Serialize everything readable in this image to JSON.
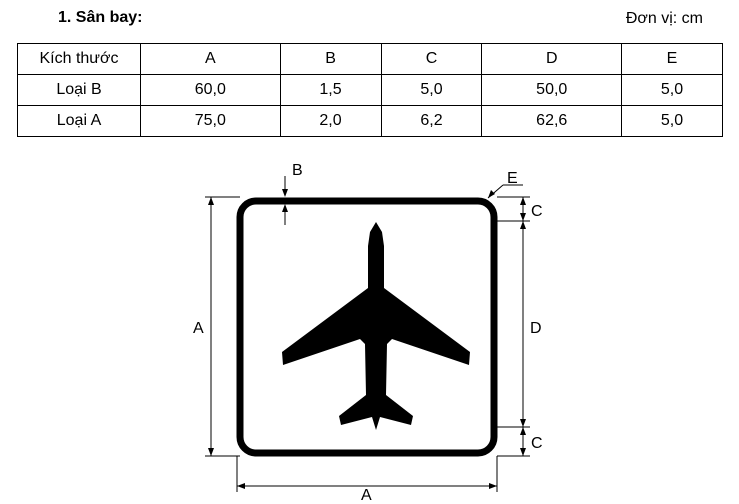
{
  "heading": {
    "title": "1. Sân bay:",
    "unit": "Đơn vị: cm"
  },
  "table": {
    "header_label": "Kích thước",
    "columns": [
      "A",
      "B",
      "C",
      "D",
      "E"
    ],
    "rows": [
      {
        "label": "Loại B",
        "values": [
          "60,0",
          "1,5",
          "5,0",
          "50,0",
          "5,0"
        ]
      },
      {
        "label": "Loại A",
        "values": [
          "75,0",
          "2,0",
          "6,2",
          "62,6",
          "5,0"
        ]
      }
    ]
  },
  "diagram": {
    "labels": {
      "a_left": "A",
      "a_bottom": "A",
      "b": "B",
      "c_top": "C",
      "c_bottom": "C",
      "d": "D",
      "e": "E"
    }
  }
}
